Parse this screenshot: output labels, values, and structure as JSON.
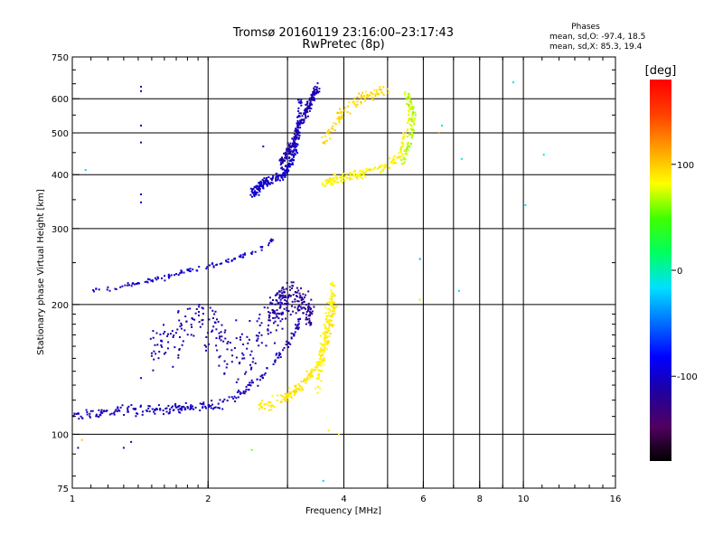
{
  "chart_data": {
    "type": "scatter",
    "title": "Tromsø 20160119 23:16:00–23:17:43",
    "subtitle": "RwPretec (8p)",
    "xlabel": "Frequency [MHz]",
    "ylabel": "Stationary phase Virtual Height [km]",
    "x_scale": "log",
    "y_scale": "log",
    "xlim": [
      1,
      16
    ],
    "ylim": [
      75,
      750
    ],
    "x_ticks": [
      1,
      2,
      4,
      6,
      8,
      10,
      16
    ],
    "x_minor": [
      3,
      5,
      7,
      9
    ],
    "y_ticks": [
      75,
      100,
      200,
      300,
      400,
      500,
      600,
      750
    ],
    "grid": true,
    "legend": {
      "title": "Phases",
      "lines": [
        "mean, sd,O: -97.4, 18.5",
        "mean, sd,X: 85.3, 19.4"
      ]
    },
    "colorbar": {
      "label": "[deg]",
      "ticks": [
        100,
        0,
        -100
      ],
      "range": [
        -180,
        180
      ],
      "colors": [
        "#000000",
        "#500060",
        "#2000a0",
        "#0000ff",
        "#0070ff",
        "#00e0ff",
        "#00ff60",
        "#40ff00",
        "#ffff00",
        "#ffa000",
        "#ff4000",
        "#ff0000"
      ]
    },
    "traces": [
      {
        "name": "o-lower",
        "x": [
          1.0,
          1.15,
          1.3,
          1.5,
          1.7,
          1.9,
          2.1,
          2.4,
          2.7,
          3.0,
          3.2
        ],
        "y": [
          110,
          112,
          113,
          114,
          115,
          116,
          118,
          125,
          140,
          160,
          185
        ],
        "yspread": 5,
        "count": 240,
        "phase": -105,
        "pspread": 15
      },
      {
        "name": "o-lower-cloud",
        "x": [
          1.5,
          1.7,
          1.9,
          2.1,
          2.3,
          2.5,
          2.8,
          3.0
        ],
        "y": [
          150,
          170,
          190,
          170,
          150,
          160,
          190,
          210
        ],
        "yspread": 35,
        "count": 220,
        "phase": -110,
        "pspread": 15
      },
      {
        "name": "o-layer-rise",
        "x": [
          1.1,
          1.3,
          1.5,
          1.7,
          1.9,
          2.1,
          2.3,
          2.6,
          2.8
        ],
        "y": [
          215,
          220,
          228,
          235,
          242,
          248,
          255,
          268,
          285
        ],
        "yspread": 5,
        "count": 110,
        "phase": -100,
        "pspread": 12
      },
      {
        "name": "o-f1-band",
        "x": [
          2.7,
          2.9,
          3.1,
          3.3,
          3.4
        ],
        "y": [
          185,
          200,
          210,
          195,
          190
        ],
        "yspread": 25,
        "count": 150,
        "phase": -120,
        "pspread": 15
      },
      {
        "name": "x-lower",
        "x": [
          2.6,
          2.9,
          3.2,
          3.5,
          3.7,
          3.8
        ],
        "y": [
          115,
          120,
          128,
          145,
          170,
          200
        ],
        "yspread": 6,
        "count": 180,
        "phase": 90,
        "pspread": 12
      },
      {
        "name": "x-column",
        "x": [
          3.5,
          3.6,
          3.7,
          3.8
        ],
        "y": [
          130,
          160,
          190,
          220
        ],
        "yspread": 15,
        "count": 110,
        "phase": 85,
        "pspread": 12
      },
      {
        "name": "o-upper",
        "x": [
          2.5,
          2.6,
          2.7,
          2.9,
          3.0,
          3.1,
          3.15,
          3.2
        ],
        "y": [
          360,
          375,
          385,
          395,
          410,
          440,
          500,
          600
        ],
        "yspread": 15,
        "count": 250,
        "phase": -100,
        "pspread": 15
      },
      {
        "name": "o-upper-cloud",
        "x": [
          2.9,
          3.0,
          3.1,
          3.2,
          3.3,
          3.4,
          3.5
        ],
        "y": [
          420,
          450,
          480,
          520,
          560,
          600,
          640
        ],
        "yspread": 20,
        "count": 190,
        "phase": -110,
        "pspread": 15
      },
      {
        "name": "x-upper",
        "x": [
          3.6,
          3.8,
          4.0,
          4.3,
          4.7,
          5.0,
          5.3,
          5.5,
          5.6
        ],
        "y": [
          380,
          390,
          395,
          400,
          410,
          420,
          440,
          500,
          580
        ],
        "yspread": 15,
        "count": 170,
        "phase": 85,
        "pspread": 15
      },
      {
        "name": "x-upper-cloud",
        "x": [
          3.6,
          3.8,
          4.0,
          4.3,
          4.7,
          5.0
        ],
        "y": [
          480,
          520,
          560,
          600,
          620,
          630
        ],
        "yspread": 30,
        "count": 100,
        "phase": 95,
        "pspread": 15
      },
      {
        "name": "x-f2-cusp",
        "x": [
          5.4,
          5.5,
          5.6,
          5.7,
          5.7,
          5.6,
          5.5
        ],
        "y": [
          420,
          450,
          480,
          520,
          560,
          600,
          620
        ],
        "yspread": 12,
        "count": 90,
        "phase": 70,
        "pspread": 20
      }
    ],
    "scatter_extra": [
      {
        "x": 1.42,
        "y": 640,
        "p": -120
      },
      {
        "x": 1.42,
        "y": 625,
        "p": -110
      },
      {
        "x": 1.42,
        "y": 520,
        "p": -115
      },
      {
        "x": 1.42,
        "y": 475,
        "p": -120
      },
      {
        "x": 1.42,
        "y": 360,
        "p": -110
      },
      {
        "x": 1.42,
        "y": 345,
        "p": -105
      },
      {
        "x": 1.07,
        "y": 410,
        "p": -20
      },
      {
        "x": 1.42,
        "y": 135,
        "p": -100
      },
      {
        "x": 2.65,
        "y": 465,
        "p": -110
      },
      {
        "x": 6.5,
        "y": 500,
        "p": 120
      },
      {
        "x": 6.6,
        "y": 520,
        "p": -10
      },
      {
        "x": 7.3,
        "y": 435,
        "p": -10
      },
      {
        "x": 9.5,
        "y": 655,
        "p": -10
      },
      {
        "x": 10.1,
        "y": 340,
        "p": -10
      },
      {
        "x": 11.1,
        "y": 445,
        "p": -10
      },
      {
        "x": 5.9,
        "y": 255,
        "p": -30
      },
      {
        "x": 5.9,
        "y": 205,
        "p": 70
      },
      {
        "x": 7.2,
        "y": 215,
        "p": -20
      },
      {
        "x": 3.6,
        "y": 78,
        "p": -20
      },
      {
        "x": 2.5,
        "y": 92,
        "p": 60
      },
      {
        "x": 1.35,
        "y": 96,
        "p": -110
      },
      {
        "x": 1.3,
        "y": 93,
        "p": -90
      },
      {
        "x": 3.7,
        "y": 102,
        "p": 90
      },
      {
        "x": 3.9,
        "y": 100,
        "p": 90
      },
      {
        "x": 1.05,
        "y": 97,
        "p": 100
      },
      {
        "x": 1.03,
        "y": 93,
        "p": -110
      }
    ]
  }
}
